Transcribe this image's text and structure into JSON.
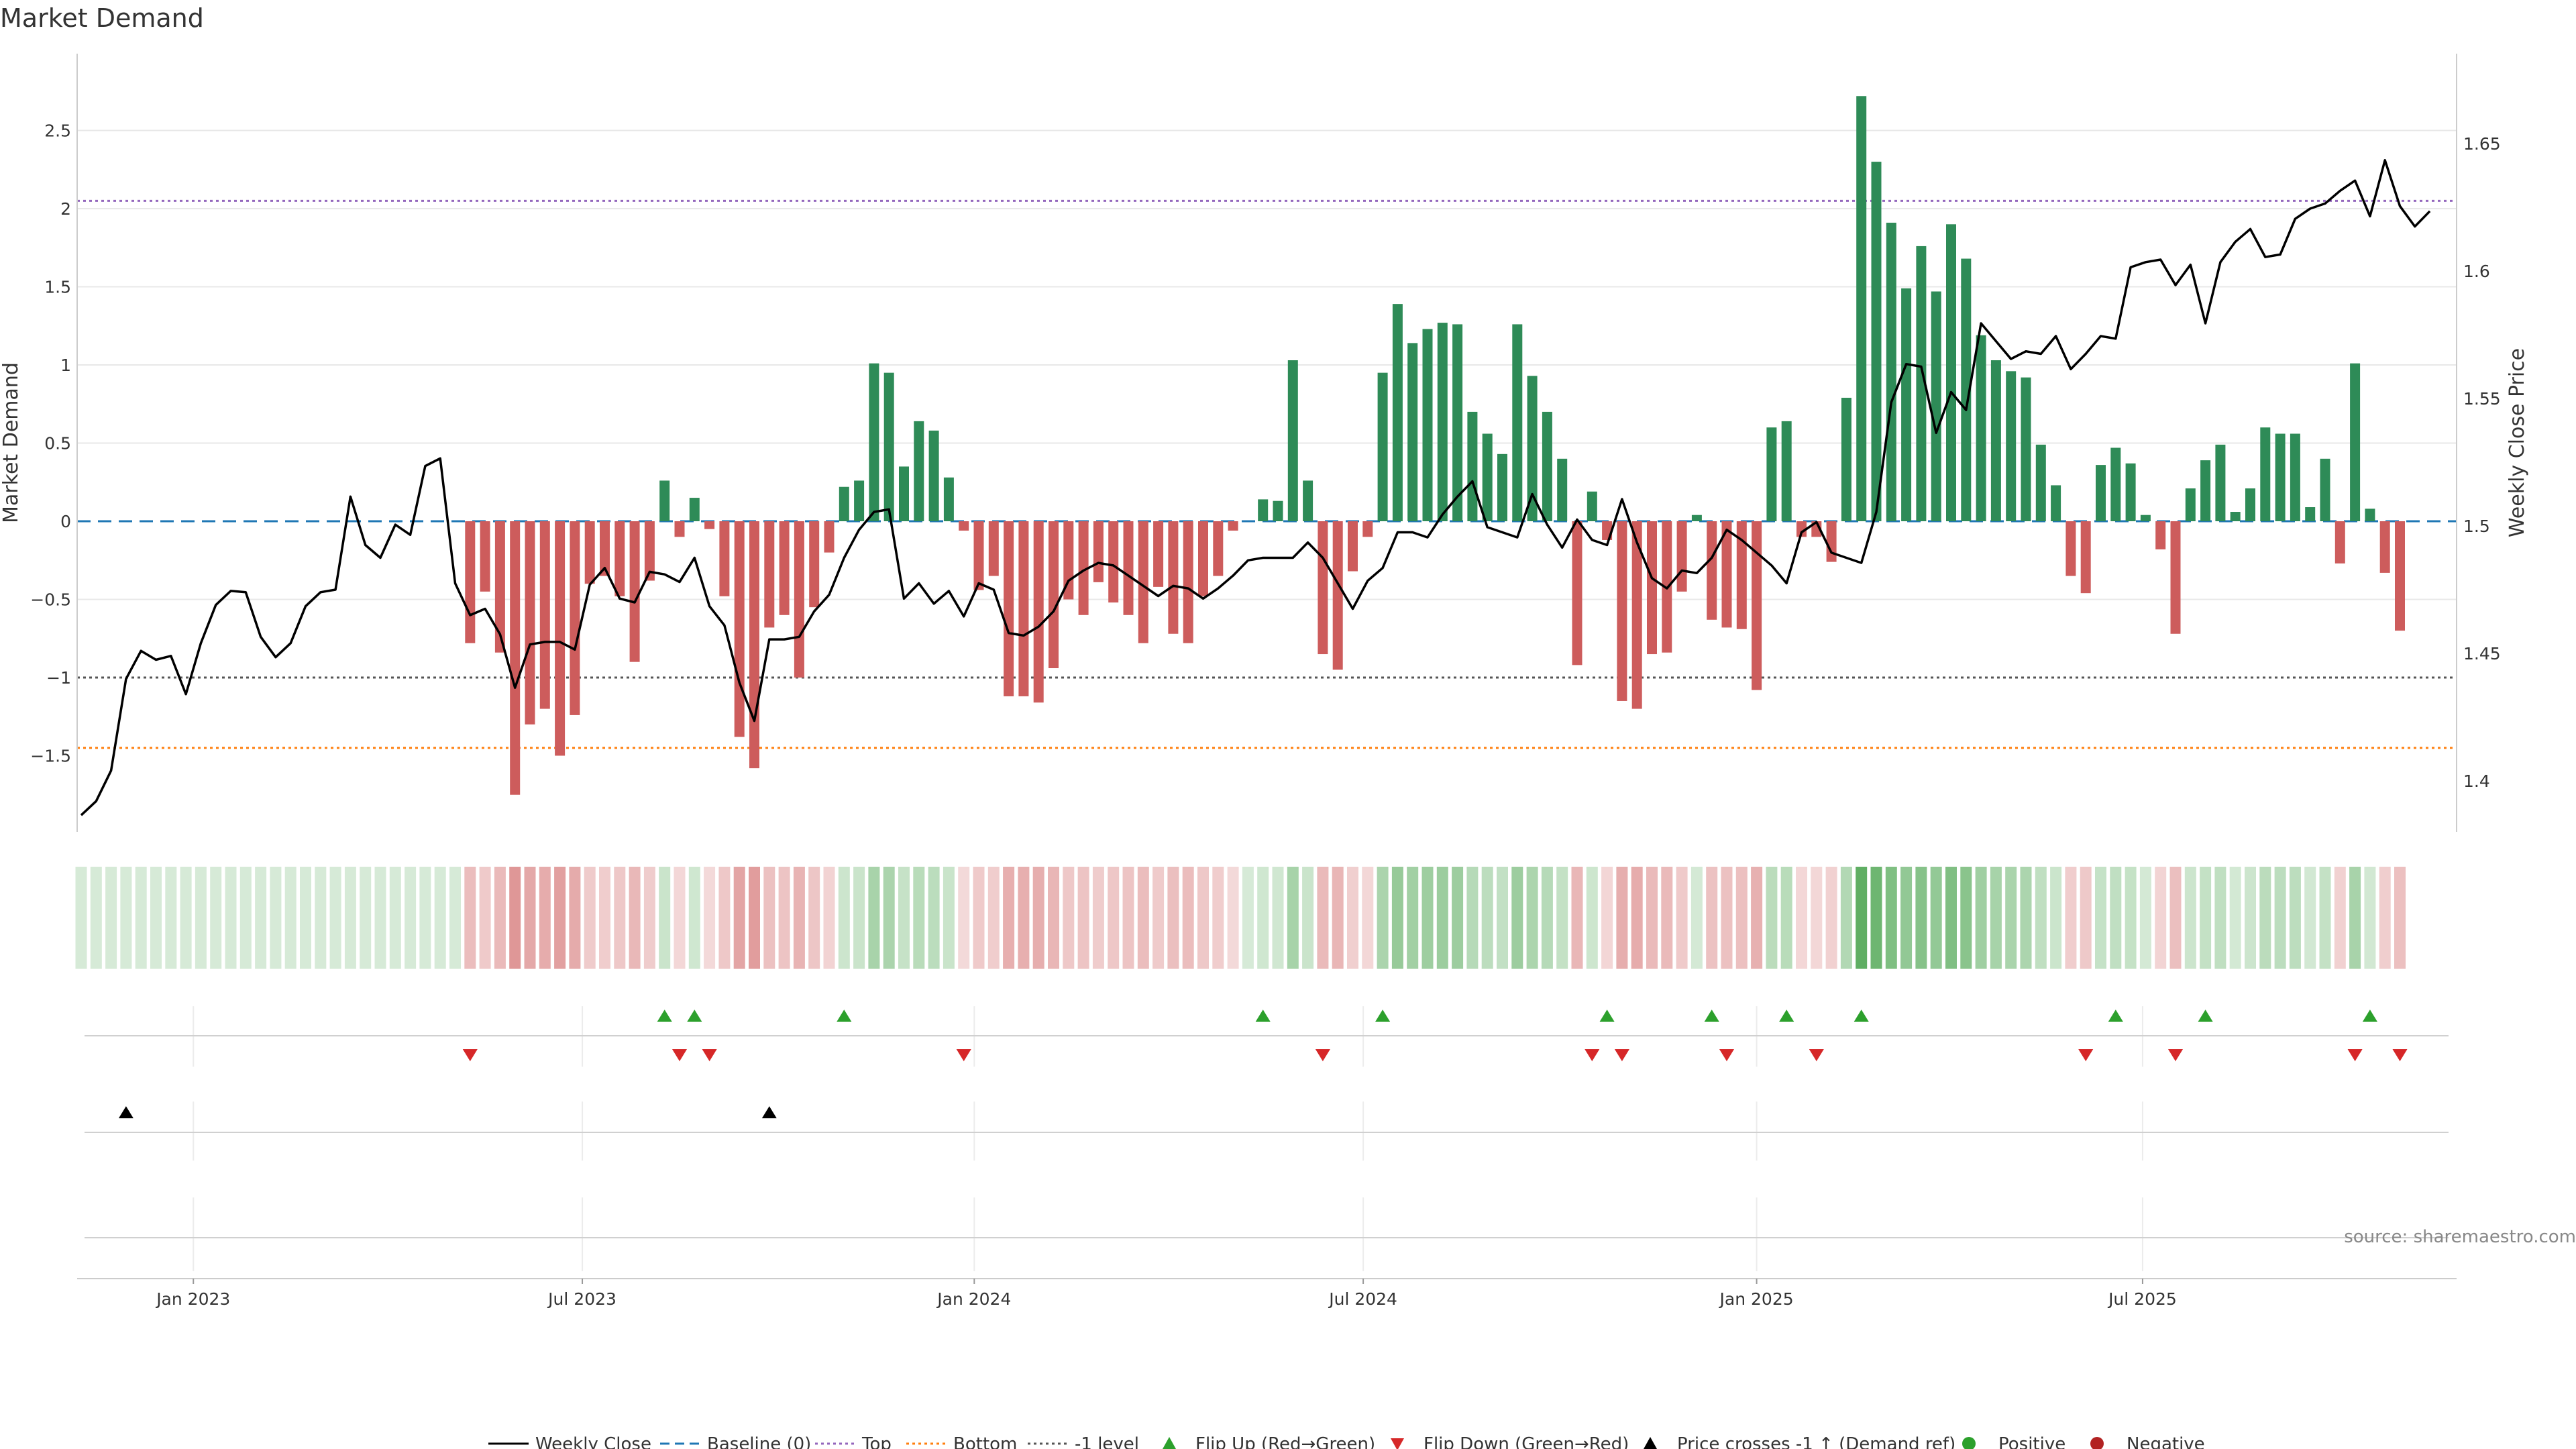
{
  "colors": {
    "positive": "#2e8b57",
    "negative": "#cd5c5c",
    "price_line": "#000000",
    "baseline": "#1f77b4",
    "top": "#9467bd",
    "bottom": "#ff7f0e",
    "minus_one": "#555555",
    "flip_up": "#2ca02c",
    "flip_down": "#d62728",
    "grid": "#e8e8e8"
  },
  "chart_data": {
    "type": "bar",
    "title": "Market Demand",
    "ylabel": "Market Demand",
    "y2label": "Weekly Close Price",
    "ylim": [
      -2.0,
      2.95
    ],
    "y2lim": [
      1.3805,
      1.6853
    ],
    "yticks": [
      2.5,
      2,
      1.5,
      1,
      0.5,
      0,
      -0.5,
      -1,
      -1.5
    ],
    "ytick_labels": [
      "2.5",
      "2",
      "1.5",
      "1",
      "0.5",
      "0",
      "−0.5",
      "−1",
      "−1.5"
    ],
    "y2ticks": [
      1.65,
      1.6,
      1.55,
      1.5,
      1.45,
      1.4
    ],
    "y2tick_labels": [
      "1.65",
      "1.6",
      "1.55",
      "1.5",
      "1.45",
      "1.4"
    ],
    "xticks": [
      {
        "label": "Jan 2023",
        "week": 7.5
      },
      {
        "label": "Jul 2023",
        "week": 33.5
      },
      {
        "label": "Jan 2024",
        "week": 59.7
      },
      {
        "label": "Jul 2024",
        "week": 85.7
      },
      {
        "label": "Jan 2025",
        "week": 112
      },
      {
        "label": "Jul 2025",
        "week": 137.8
      }
    ],
    "reference_lines": {
      "baseline": 0,
      "top": 2.05,
      "bottom": -1.45,
      "minus_one": -1
    },
    "demand": [
      0,
      0,
      0,
      0,
      0,
      0,
      0,
      0,
      0,
      0,
      0,
      0,
      0,
      0,
      0,
      0,
      0,
      0,
      0,
      0,
      0,
      0,
      0,
      0,
      0,
      0,
      -0.78,
      -0.45,
      -0.84,
      -1.75,
      -1.3,
      -1.2,
      -1.5,
      -1.24,
      -0.4,
      -0.35,
      -0.48,
      -0.9,
      -0.38,
      0.26,
      -0.1,
      0.15,
      -0.05,
      -0.48,
      -1.38,
      -1.58,
      -0.68,
      -0.6,
      -1.0,
      -0.55,
      -0.2,
      0.22,
      0.26,
      1.01,
      0.95,
      0.35,
      0.64,
      0.58,
      0.28,
      -0.06,
      -0.44,
      -0.35,
      -1.12,
      -1.12,
      -1.16,
      -0.94,
      -0.5,
      -0.6,
      -0.39,
      -0.52,
      -0.6,
      -0.78,
      -0.42,
      -0.72,
      -0.78,
      -0.48,
      -0.35,
      -0.06,
      0,
      0.14,
      0.13,
      1.03,
      0.26,
      -0.85,
      -0.95,
      -0.32,
      -0.1,
      0.95,
      1.39,
      1.14,
      1.23,
      1.27,
      1.26,
      0.7,
      0.56,
      0.43,
      1.26,
      0.93,
      0.7,
      0.4,
      -0.92,
      0.19,
      -0.12,
      -1.15,
      -1.2,
      -0.85,
      -0.84,
      -0.45,
      0.04,
      -0.63,
      -0.68,
      -0.69,
      -1.08,
      0.6,
      0.64,
      -0.1,
      -0.1,
      -0.26,
      0.79,
      2.72,
      2.3,
      1.91,
      1.49,
      1.76,
      1.47,
      1.9,
      1.68,
      1.19,
      1.03,
      0.96,
      0.92,
      0.49,
      0.23,
      -0.35,
      -0.46,
      0.36,
      0.47,
      0.37,
      0.04,
      -0.18,
      -0.72,
      0.21,
      0.39,
      0.49,
      0.06,
      0.21,
      0.6,
      0.56,
      0.56,
      0.09,
      0.4,
      -0.27,
      1.01,
      0.08,
      -0.33,
      -0.7
    ],
    "weekly_close": [
      1.3865,
      1.392,
      1.404,
      1.44,
      1.451,
      1.4475,
      1.449,
      1.434,
      1.454,
      1.469,
      1.4745,
      1.474,
      1.4565,
      1.4485,
      1.454,
      1.4685,
      1.474,
      1.475,
      1.5115,
      1.4925,
      1.4875,
      1.5005,
      1.4965,
      1.5235,
      1.5265,
      1.4775,
      1.465,
      1.4675,
      1.4575,
      1.4365,
      1.4535,
      1.4545,
      1.4545,
      1.4515,
      1.477,
      1.4835,
      1.4715,
      1.47,
      1.482,
      1.481,
      1.478,
      1.4875,
      1.4685,
      1.461,
      1.4385,
      1.4235,
      1.4555,
      1.4555,
      1.4565,
      1.4665,
      1.473,
      1.4875,
      1.4985,
      1.5055,
      1.5065,
      1.4715,
      1.4775,
      1.4695,
      1.4745,
      1.4645,
      1.4775,
      1.475,
      1.458,
      1.457,
      1.4605,
      1.4665,
      1.4785,
      1.4825,
      1.4855,
      1.4845,
      1.4805,
      1.4765,
      1.4725,
      1.4765,
      1.4755,
      1.4715,
      1.4755,
      1.4805,
      1.4865,
      1.4875,
      1.4875,
      1.4875,
      1.4935,
      1.4875,
      1.4775,
      1.4675,
      1.4785,
      1.4835,
      1.4975,
      1.4975,
      1.4955,
      1.5045,
      1.5115,
      1.5175,
      1.4995,
      1.4975,
      1.4955,
      1.5125,
      1.5005,
      1.4915,
      1.5025,
      1.4945,
      1.4925,
      1.5105,
      1.4935,
      1.4795,
      1.4755,
      1.4825,
      1.4815,
      1.4875,
      1.4985,
      1.4945,
      1.4895,
      1.4845,
      1.4775,
      1.4975,
      1.5015,
      1.4895,
      1.4875,
      1.4855,
      1.5055,
      1.5485,
      1.5635,
      1.5625,
      1.5365,
      1.5525,
      1.5455,
      1.5795,
      1.5725,
      1.5655,
      1.5685,
      1.5675,
      1.5745,
      1.5615,
      1.5675,
      1.5745,
      1.5735,
      1.6015,
      1.6035,
      1.6045,
      1.5945,
      1.6025,
      1.5795,
      1.6035,
      1.6115,
      1.6165,
      1.6055,
      1.6065,
      1.6205,
      1.6245,
      1.6265,
      1.6315,
      1.6355,
      1.6215,
      1.6435,
      1.6255,
      1.6175,
      1.6235
    ],
    "flip_up_weeks": [
      39,
      41,
      51,
      79,
      87,
      102,
      109,
      114,
      119,
      136,
      142,
      153
    ],
    "flip_down_weeks": [
      26,
      40,
      42,
      59,
      83,
      101,
      103,
      110,
      116,
      134,
      140,
      152,
      155
    ],
    "price_cross_weeks": [
      3,
      46
    ],
    "legend": [
      "Weekly Close",
      "Baseline (0)",
      "Top",
      "Bottom",
      "-1 level",
      "Flip Up (Red→Green)",
      "Flip Down (Green→Red)",
      "Price crosses -1 ↑ (Demand ref)",
      "Positive",
      "Negative"
    ]
  },
  "source": "source: sharemaestro.com"
}
